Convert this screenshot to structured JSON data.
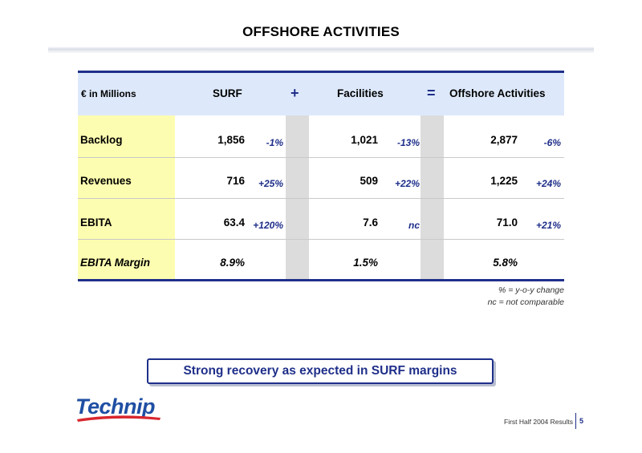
{
  "slide": {
    "title": "OFFSHORE ACTIVITIES"
  },
  "table": {
    "unit_label": "€ in Millions",
    "columns": [
      "SURF",
      "Facilities",
      "Offshore Activities"
    ],
    "operators": [
      "+",
      "="
    ],
    "rows": [
      {
        "label": "Backlog",
        "surf": "1,856",
        "surf_chg": "-1%",
        "fac": "1,021",
        "fac_chg": "-13%",
        "off": "2,877",
        "off_chg": "-6%"
      },
      {
        "label": "Revenues",
        "surf": "716",
        "surf_chg": "+25%",
        "fac": "509",
        "fac_chg": "+22%",
        "off": "1,225",
        "off_chg": "+24%"
      },
      {
        "label": "EBITA",
        "surf": "63.4",
        "surf_chg": "+120%",
        "fac": "7.6",
        "fac_chg": "nc",
        "off": "71.0",
        "off_chg": "+21%"
      },
      {
        "label": "EBITA Margin",
        "surf": "8.9%",
        "surf_chg": "",
        "fac": "1.5%",
        "fac_chg": "",
        "off": "5.8%",
        "off_chg": ""
      }
    ]
  },
  "notes": {
    "line1": "% = y-o-y change",
    "line2": "nc = not comparable"
  },
  "callout": "Strong recovery as expected in SURF margins",
  "logo": "Technip",
  "footer": {
    "text": "First Half 2004 Results",
    "page": "5"
  },
  "colors": {
    "accent": "#1f2f8a",
    "header_band": "#dde9fb",
    "label_column": "#fdfdb1",
    "operator_column": "#dcdcdc"
  }
}
